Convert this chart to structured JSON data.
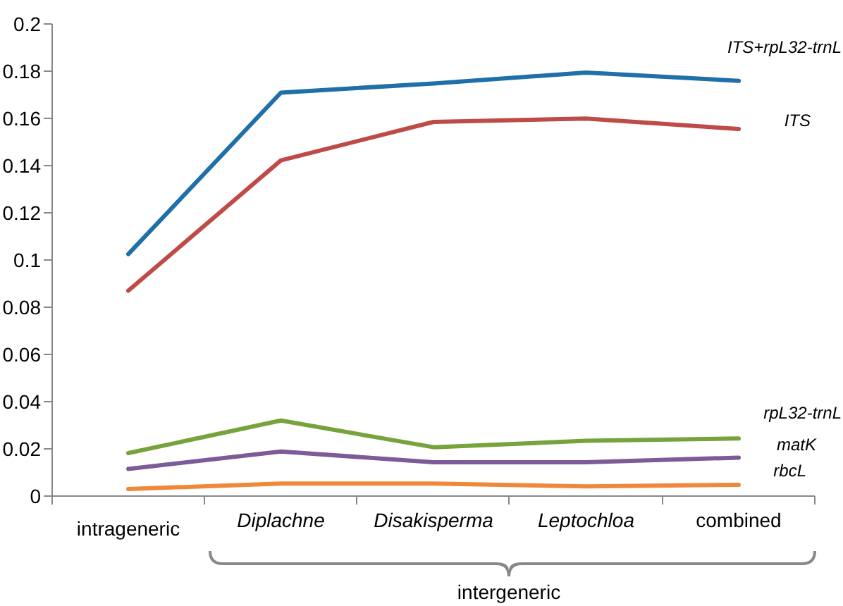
{
  "chart_data": {
    "type": "line",
    "categories": [
      "intrageneric",
      "Diplachne",
      "Disakisperma",
      "Leptochloa",
      "combined"
    ],
    "series": [
      {
        "name": "ITS+rpL32-trnL",
        "color": "#1f6fa8",
        "values": [
          0.1025,
          0.1709,
          0.1748,
          0.1794,
          0.1759
        ]
      },
      {
        "name": "ITS",
        "color": "#be4b48",
        "values": [
          0.087,
          0.1422,
          0.1585,
          0.1599,
          0.1555
        ]
      },
      {
        "name": "rpL32-trnL",
        "color": "#77a33c",
        "values": [
          0.0182,
          0.032,
          0.0207,
          0.0234,
          0.0244
        ]
      },
      {
        "name": "matK",
        "color": "#7d5a98",
        "values": [
          0.0115,
          0.0189,
          0.0143,
          0.0143,
          0.0163
        ]
      },
      {
        "name": "rbcL",
        "color": "#f0883a",
        "values": [
          0.003,
          0.0053,
          0.0053,
          0.0041,
          0.0048
        ]
      }
    ],
    "ylim": [
      0,
      0.2
    ],
    "yticks": [
      0,
      0.02,
      0.04,
      0.06,
      0.08,
      0.1,
      0.12,
      0.14,
      0.16,
      0.18,
      0.2
    ],
    "annotations": [
      "intergeneric"
    ],
    "grid": false,
    "legend": false,
    "marker": "none",
    "line_style": "solid"
  }
}
